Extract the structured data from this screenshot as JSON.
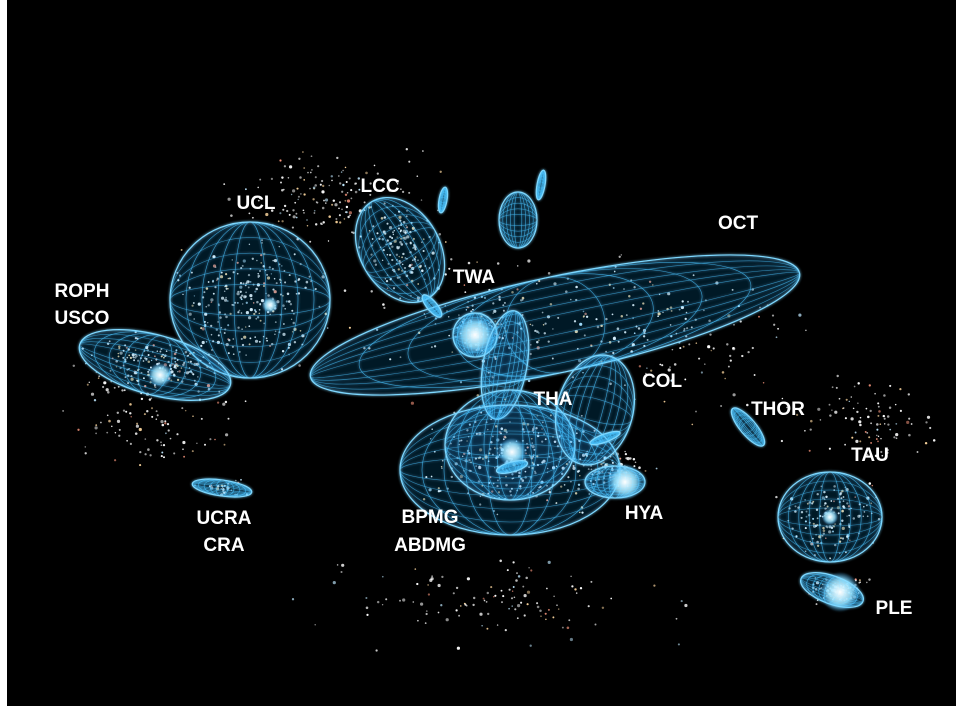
{
  "labels": {
    "ucl": "UCL",
    "lcc": "LCC",
    "roph": "ROPH",
    "usco": "USCO",
    "twa": "TWA",
    "oct": "OCT",
    "tha": "THA",
    "col": "COL",
    "thor": "THOR",
    "tau": "TAU",
    "ucra": "UCRA",
    "cra": "CRA",
    "bpmg": "BPMG",
    "abdmg": "ABDMG",
    "hya": "HYA",
    "ple": "PLE"
  }
}
